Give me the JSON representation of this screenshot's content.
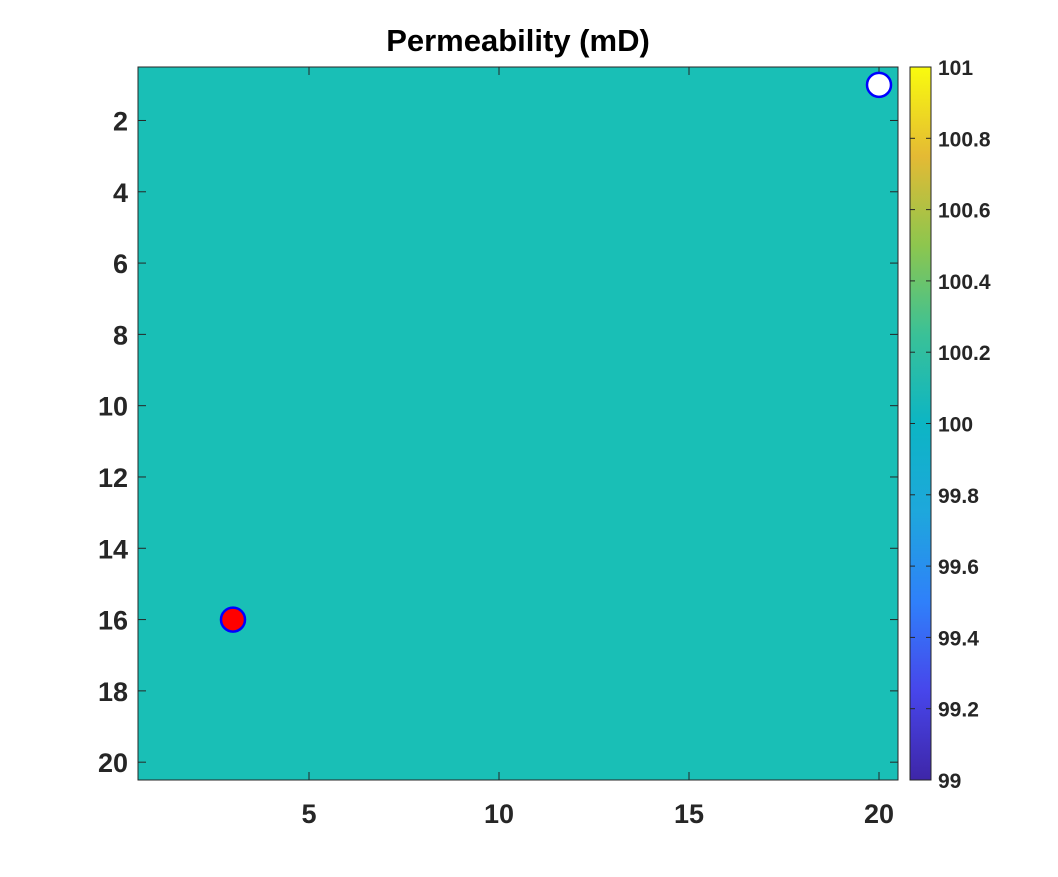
{
  "chart_data": {
    "type": "heatmap",
    "title": "Permeability (mD)",
    "grid_size": [
      20,
      20
    ],
    "value": 100,
    "field_color": "#19bfb6",
    "xlim": [
      0.5,
      20.5
    ],
    "ylim": [
      0.5,
      20.5
    ],
    "y_reversed": true,
    "x_ticks": [
      5,
      10,
      15,
      20
    ],
    "y_ticks": [
      2,
      4,
      6,
      8,
      10,
      12,
      14,
      16,
      18,
      20
    ],
    "colorbar": {
      "position": "right",
      "range": [
        99,
        101
      ],
      "ticks": [
        "99",
        "99.2",
        "99.4",
        "99.6",
        "99.8",
        "100",
        "100.2",
        "100.4",
        "100.6",
        "100.8",
        "101"
      ],
      "colormap": "parula"
    },
    "markers": [
      {
        "name": "",
        "x": 3,
        "y": 16,
        "fill": "#ff0000",
        "edge": "#0000ff"
      },
      {
        "name": "",
        "x": 20,
        "y": 1,
        "fill": "#ffffff",
        "edge": "#0000ff"
      }
    ]
  }
}
